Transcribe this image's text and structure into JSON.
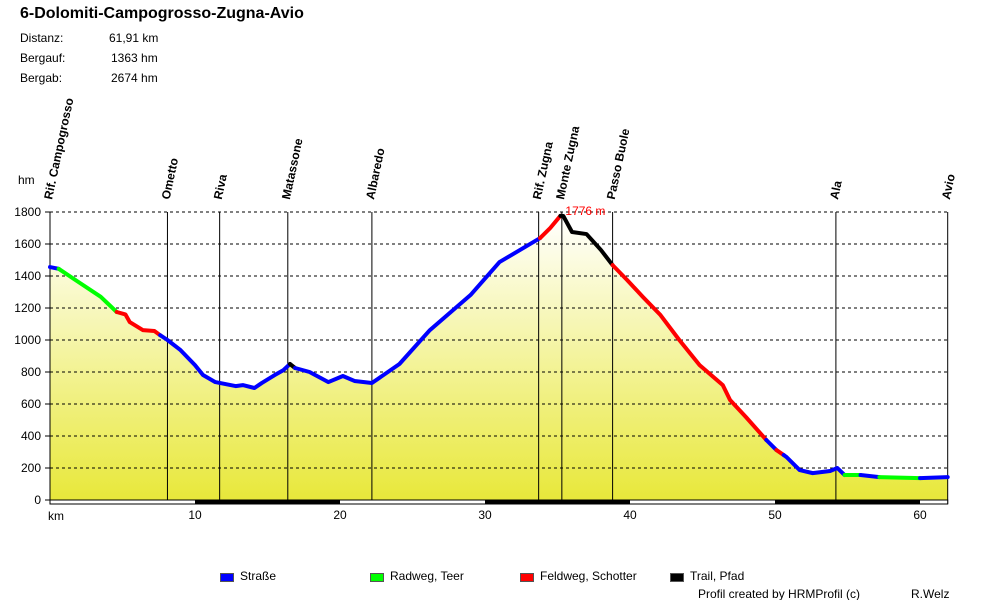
{
  "header": {
    "title": "6-Dolomiti-Campogrosso-Zugna-Avio",
    "stats": [
      {
        "label": "Distanz:",
        "value": "61,91 km"
      },
      {
        "label": "Bergauf:",
        "value": "1363 hm"
      },
      {
        "label": "Bergab:",
        "value": "2674 hm"
      }
    ]
  },
  "footer": {
    "credit": "Profil created by HRMProfil (c)",
    "author": "R.Welz"
  },
  "chart_data": {
    "type": "line",
    "title": "6-Dolomiti-Campogrosso-Zugna-Avio",
    "xlabel": "km",
    "ylabel": "hm",
    "xlim": [
      0,
      61.91
    ],
    "ylim": [
      0,
      1800
    ],
    "xticks": [
      10,
      20,
      30,
      40,
      50,
      60
    ],
    "yticks": [
      0,
      200,
      400,
      600,
      800,
      1000,
      1200,
      1400,
      1600,
      1800
    ],
    "grid": "horizontal-dashed",
    "max_label": "1776 m",
    "max_point": [
      35.2,
      1776
    ],
    "colors": {
      "road": "#0000ff",
      "bikepath": "#00ff00",
      "gravel": "#ff0000",
      "trail": "#000000"
    },
    "legend": [
      {
        "key": "road",
        "label": "Straße"
      },
      {
        "key": "bikepath",
        "label": "Radweg, Teer"
      },
      {
        "key": "gravel",
        "label": "Feldweg, Schotter"
      },
      {
        "key": "trail",
        "label": "Trail, Pfad"
      }
    ],
    "segments": [
      {
        "type": "road",
        "points": [
          [
            0,
            1456
          ],
          [
            0.6,
            1445
          ]
        ]
      },
      {
        "type": "bikepath",
        "points": [
          [
            0.6,
            1445
          ],
          [
            2,
            1360
          ],
          [
            3.5,
            1270
          ],
          [
            4.6,
            1175
          ]
        ]
      },
      {
        "type": "gravel",
        "points": [
          [
            4.6,
            1175
          ],
          [
            5.2,
            1160
          ],
          [
            5.5,
            1112
          ],
          [
            6.4,
            1062
          ],
          [
            7.2,
            1056
          ],
          [
            7.6,
            1030
          ]
        ]
      },
      {
        "type": "road",
        "points": [
          [
            7.6,
            1030
          ],
          [
            8.1,
            1000
          ],
          [
            9.0,
            937
          ],
          [
            10,
            843
          ],
          [
            10.55,
            781
          ],
          [
            11.4,
            737
          ],
          [
            12.8,
            712
          ],
          [
            13.3,
            718
          ],
          [
            14.1,
            700
          ],
          [
            14.6,
            731
          ],
          [
            15.5,
            781
          ],
          [
            16.1,
            812
          ],
          [
            16.55,
            850
          ]
        ]
      },
      {
        "type": "trail",
        "points": [
          [
            16.55,
            850
          ],
          [
            16.9,
            825
          ]
        ]
      },
      {
        "type": "road",
        "points": [
          [
            16.9,
            825
          ],
          [
            17.9,
            800
          ],
          [
            19.2,
            737
          ],
          [
            20.2,
            775
          ],
          [
            21.0,
            744
          ],
          [
            22.2,
            731
          ],
          [
            24.1,
            850
          ],
          [
            26.2,
            1062
          ],
          [
            29,
            1281
          ],
          [
            31,
            1487
          ],
          [
            33.8,
            1637
          ]
        ]
      },
      {
        "type": "gravel",
        "points": [
          [
            33.8,
            1637
          ],
          [
            34.5,
            1700
          ],
          [
            35.2,
            1776
          ]
        ]
      },
      {
        "type": "trail",
        "points": [
          [
            35.2,
            1776
          ],
          [
            35.4,
            1775
          ],
          [
            36,
            1675
          ],
          [
            37,
            1662
          ],
          [
            38,
            1562
          ],
          [
            38.8,
            1468
          ]
        ]
      },
      {
        "type": "gravel",
        "points": [
          [
            38.8,
            1468
          ],
          [
            39.8,
            1375
          ],
          [
            40.9,
            1268
          ],
          [
            42.1,
            1156
          ],
          [
            43.4,
            1000
          ],
          [
            44.8,
            843
          ],
          [
            46.4,
            718
          ],
          [
            46.9,
            625
          ],
          [
            48,
            518
          ],
          [
            49.4,
            375
          ]
        ]
      },
      {
        "type": "road",
        "points": [
          [
            49.4,
            375
          ],
          [
            50.1,
            312
          ]
        ]
      },
      {
        "type": "gravel",
        "points": [
          [
            50.1,
            312
          ],
          [
            50.6,
            281
          ]
        ]
      },
      {
        "type": "road",
        "points": [
          [
            50.6,
            281
          ],
          [
            50.8,
            268
          ],
          [
            51.7,
            187
          ],
          [
            52.6,
            168
          ],
          [
            53.8,
            181
          ],
          [
            54.3,
            200
          ],
          [
            54.8,
            156
          ]
        ]
      },
      {
        "type": "bikepath",
        "points": [
          [
            54.8,
            156
          ],
          [
            55.9,
            156
          ]
        ]
      },
      {
        "type": "road",
        "points": [
          [
            55.9,
            156
          ],
          [
            57.2,
            143
          ]
        ]
      },
      {
        "type": "bikepath",
        "points": [
          [
            57.2,
            143
          ],
          [
            60,
            137
          ]
        ]
      },
      {
        "type": "road",
        "points": [
          [
            60,
            137
          ],
          [
            61.91,
            143
          ]
        ]
      }
    ],
    "waypoints": [
      {
        "km": 0,
        "name": "Rif. Campogrosso"
      },
      {
        "km": 8.1,
        "name": "Ometto"
      },
      {
        "km": 11.7,
        "name": "Riva"
      },
      {
        "km": 16.4,
        "name": "Matassone"
      },
      {
        "km": 22.2,
        "name": "Albaredo"
      },
      {
        "km": 33.7,
        "name": "Rif. Zugna"
      },
      {
        "km": 35.3,
        "name": "Monte Zugna"
      },
      {
        "km": 38.8,
        "name": "Passo Buole"
      },
      {
        "km": 54.2,
        "name": "Ala"
      },
      {
        "km": 61.91,
        "name": "Avio"
      }
    ]
  }
}
